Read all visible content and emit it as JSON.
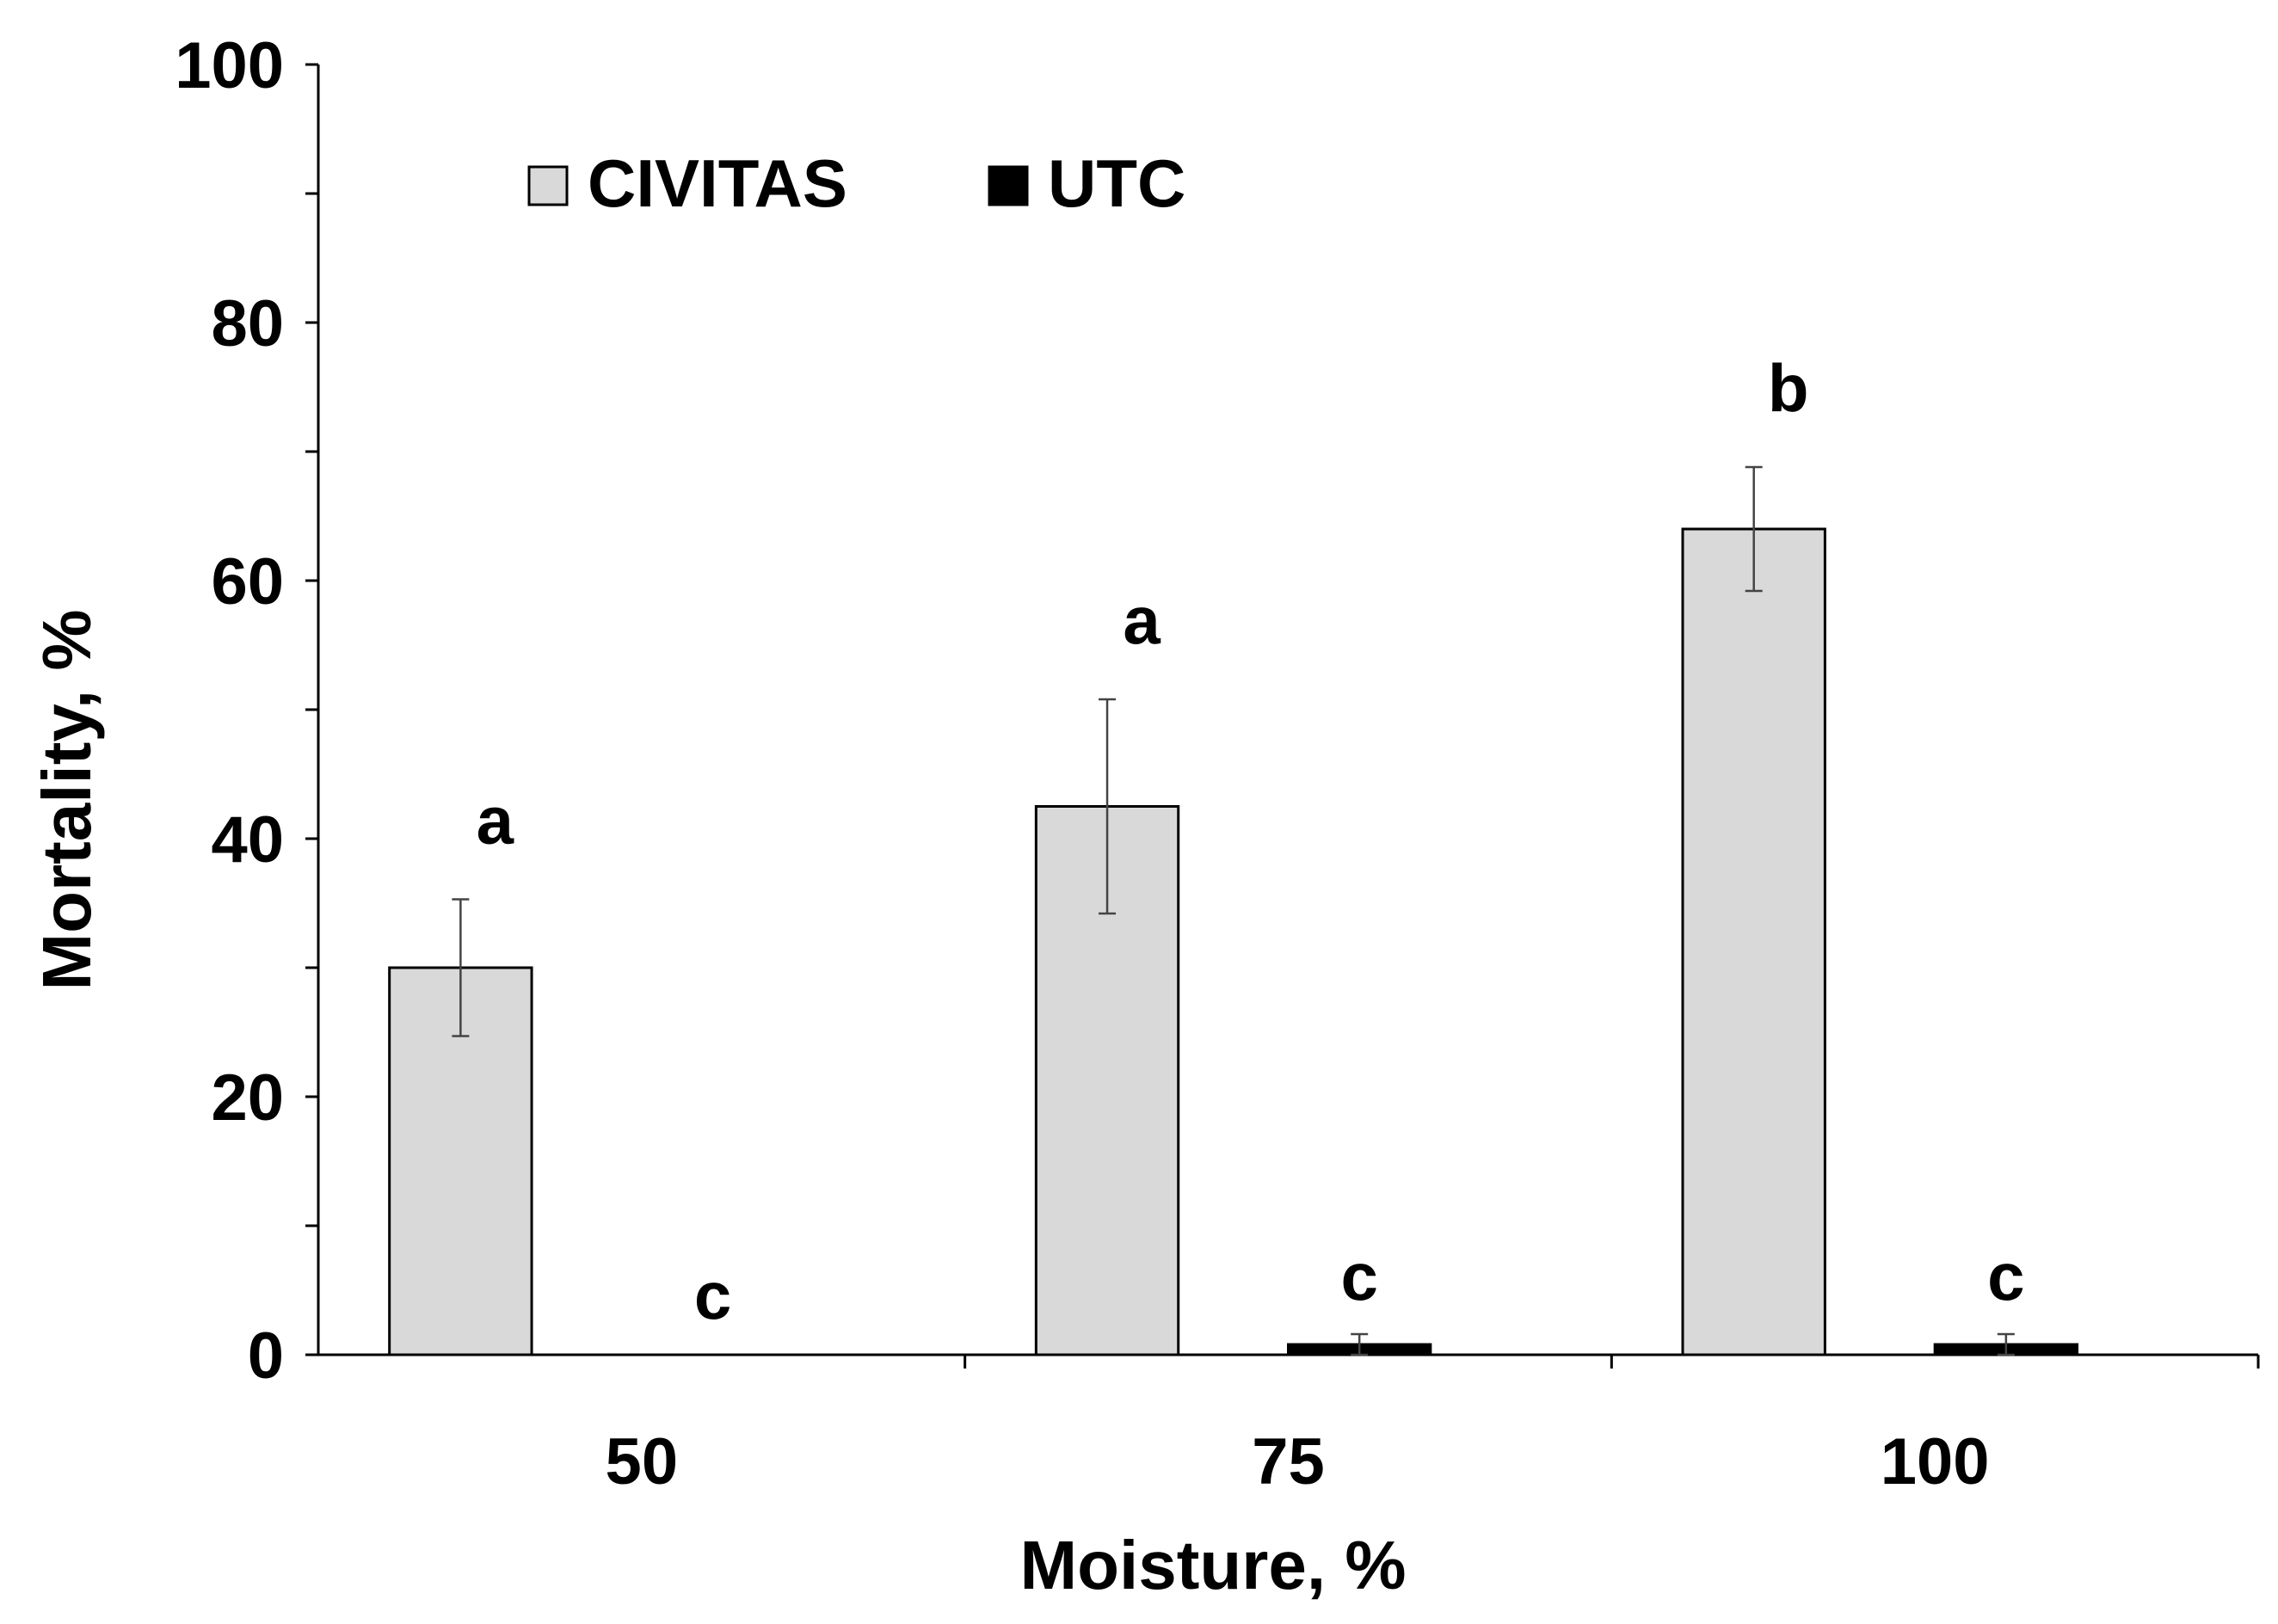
{
  "chart_data": {
    "type": "bar",
    "title": "",
    "xlabel": "Moisture, %",
    "ylabel": "Mortality, %",
    "ylim": [
      0,
      100
    ],
    "yticks": [
      0,
      20,
      40,
      60,
      80,
      100
    ],
    "yminor_step": 10,
    "grid": false,
    "legend_position": "top-left",
    "categories": [
      "50",
      "75",
      "100"
    ],
    "series": [
      {
        "name": "CIVITAS",
        "color": "#d9d9d9",
        "values": [
          30,
          42.5,
          64
        ],
        "errors": [
          5.3,
          8.3,
          4.8
        ],
        "significance": [
          "a",
          "a",
          "b"
        ]
      },
      {
        "name": "UTC",
        "color": "#000000",
        "values": [
          0,
          0.8,
          0.8
        ],
        "errors": [
          0,
          0.8,
          0.8
        ],
        "significance": [
          "c",
          "c",
          "c"
        ]
      }
    ]
  }
}
